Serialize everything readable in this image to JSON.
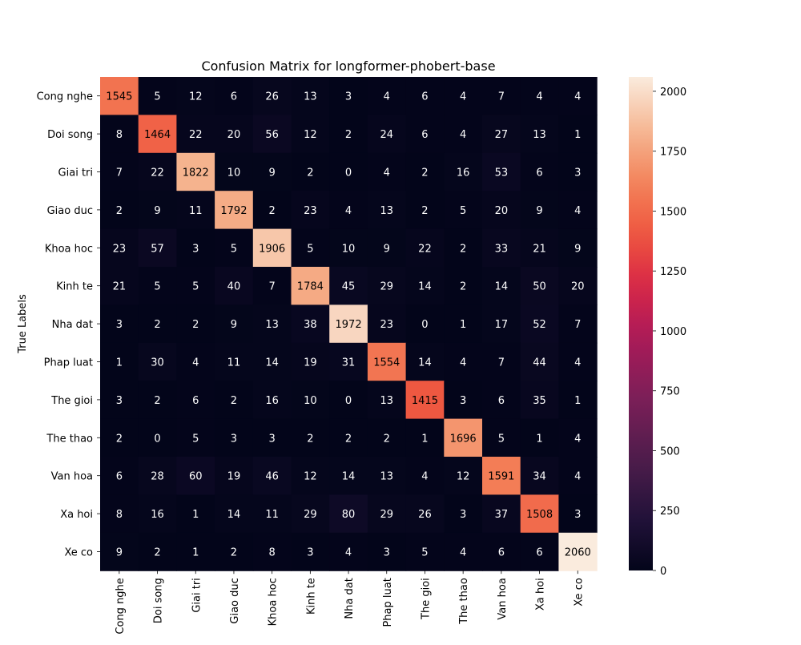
{
  "chart_data": {
    "type": "heatmap",
    "title": "Confusion Matrix for longformer-phobert-base",
    "ylabel": "True Labels",
    "xlabel": "",
    "labels": [
      "Cong nghe",
      "Doi song",
      "Giai tri",
      "Giao duc",
      "Khoa hoc",
      "Kinh te",
      "Nha dat",
      "Phap luat",
      "The gioi",
      "The thao",
      "Van hoa",
      "Xa hoi",
      "Xe co"
    ],
    "matrix": [
      [
        1545,
        5,
        12,
        6,
        26,
        13,
        3,
        4,
        6,
        4,
        7,
        4,
        4
      ],
      [
        8,
        1464,
        22,
        20,
        56,
        12,
        2,
        24,
        6,
        4,
        27,
        13,
        1
      ],
      [
        7,
        22,
        1822,
        10,
        9,
        2,
        0,
        4,
        2,
        16,
        53,
        6,
        3
      ],
      [
        2,
        9,
        11,
        1792,
        2,
        23,
        4,
        13,
        2,
        5,
        20,
        9,
        4
      ],
      [
        23,
        57,
        3,
        5,
        1906,
        5,
        10,
        9,
        22,
        2,
        33,
        21,
        9
      ],
      [
        21,
        5,
        5,
        40,
        7,
        1784,
        45,
        29,
        14,
        2,
        14,
        50,
        20
      ],
      [
        3,
        2,
        2,
        9,
        13,
        38,
        1972,
        23,
        0,
        1,
        17,
        52,
        7
      ],
      [
        1,
        30,
        4,
        11,
        14,
        19,
        31,
        1554,
        14,
        4,
        7,
        44,
        4
      ],
      [
        3,
        2,
        6,
        2,
        16,
        10,
        0,
        13,
        1415,
        3,
        6,
        35,
        1
      ],
      [
        2,
        0,
        5,
        3,
        3,
        2,
        2,
        2,
        1,
        1696,
        5,
        1,
        4
      ],
      [
        6,
        28,
        60,
        19,
        46,
        12,
        14,
        13,
        4,
        12,
        1591,
        34,
        4
      ],
      [
        8,
        16,
        1,
        14,
        11,
        29,
        80,
        29,
        26,
        3,
        37,
        1508,
        3
      ],
      [
        9,
        2,
        1,
        2,
        8,
        3,
        4,
        3,
        5,
        4,
        6,
        6,
        2060
      ]
    ],
    "colorbar": {
      "min": 0,
      "max": 2060,
      "ticks": [
        0,
        250,
        500,
        750,
        1000,
        1250,
        1500,
        1750,
        2000
      ]
    },
    "colormap": "rocket",
    "legend": "none"
  }
}
